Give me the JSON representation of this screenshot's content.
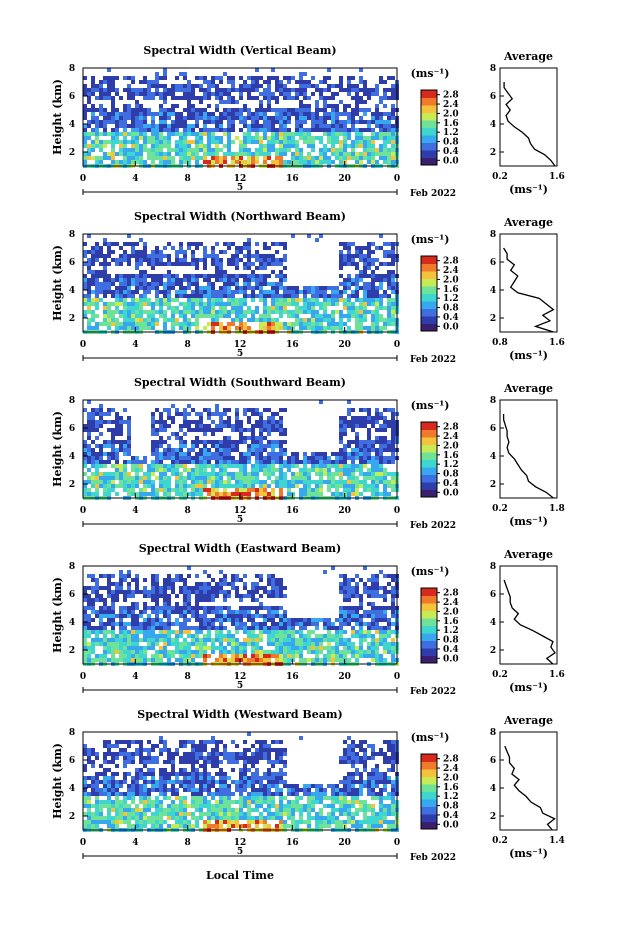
{
  "chart_data": [
    {
      "type": "heatmap",
      "title": "Spectral Width (Vertical Beam)",
      "ylabel": "Height (km)",
      "ylim": [
        1,
        8
      ],
      "y_ticks": [
        "2",
        "4",
        "6",
        "8"
      ],
      "x_ticks": [
        "0",
        "4",
        "8",
        "12",
        "16",
        "20",
        "0"
      ],
      "day_label": "5",
      "date_label": "Feb 2022",
      "colorbar": {
        "unit": "(ms⁻¹)",
        "ticks": [
          "0.0",
          "0.4",
          "0.8",
          "1.2",
          "1.6",
          "2.0",
          "2.4",
          "2.8"
        ]
      },
      "gaps": [],
      "avg": {
        "title": "Average",
        "x_ticks": [
          "0.2",
          "1.6"
        ],
        "xlim": [
          0.2,
          1.6
        ],
        "y_ticks": [
          "2",
          "4",
          "6",
          "8"
        ],
        "xlabel": "(ms⁻¹)",
        "heights": [
          1.0,
          1.4,
          1.8,
          2.2,
          2.6,
          3.0,
          3.4,
          3.8,
          4.2,
          4.6,
          5.0,
          5.4,
          5.8,
          6.2,
          6.6,
          7.0
        ],
        "values": [
          1.55,
          1.45,
          1.3,
          1.05,
          0.95,
          0.9,
          0.75,
          0.55,
          0.4,
          0.35,
          0.45,
          0.35,
          0.5,
          0.4,
          0.3,
          0.3
        ]
      }
    },
    {
      "type": "heatmap",
      "title": "Spectral Width (Northward Beam)",
      "ylabel": "Height (km)",
      "ylim": [
        1,
        8
      ],
      "y_ticks": [
        "2",
        "4",
        "6",
        "8"
      ],
      "x_ticks": [
        "0",
        "4",
        "8",
        "12",
        "16",
        "20",
        "0"
      ],
      "day_label": "5",
      "date_label": "Feb 2022",
      "colorbar": {
        "unit": "(ms⁻¹)",
        "ticks": [
          "0.0",
          "0.4",
          "0.8",
          "1.2",
          "1.6",
          "2.0",
          "2.4",
          "2.8"
        ]
      },
      "gaps": [
        [
          15.5,
          19.5,
          4.4
        ]
      ],
      "avg": {
        "title": "Average",
        "x_ticks": [
          "0.8",
          "1.6"
        ],
        "xlim": [
          0.8,
          1.6
        ],
        "y_ticks": [
          "2",
          "4",
          "6",
          "8"
        ],
        "xlabel": "(ms⁻¹)",
        "heights": [
          1.0,
          1.4,
          1.8,
          2.2,
          2.6,
          3.0,
          3.4,
          3.8,
          4.2,
          4.6,
          5.0,
          5.4,
          5.8,
          6.2,
          6.6,
          7.0
        ],
        "values": [
          1.55,
          1.3,
          1.5,
          1.4,
          1.55,
          1.45,
          1.35,
          1.05,
          0.95,
          1.0,
          1.05,
          0.95,
          1.0,
          0.9,
          0.9,
          0.85
        ]
      }
    },
    {
      "type": "heatmap",
      "title": "Spectral Width (Southward Beam)",
      "ylabel": "Height (km)",
      "ylim": [
        1,
        8
      ],
      "y_ticks": [
        "2",
        "4",
        "6",
        "8"
      ],
      "x_ticks": [
        "0",
        "4",
        "8",
        "12",
        "16",
        "20",
        "0"
      ],
      "day_label": "5",
      "date_label": "Feb 2022",
      "colorbar": {
        "unit": "(ms⁻¹)",
        "ticks": [
          "0.0",
          "0.4",
          "0.8",
          "1.2",
          "1.6",
          "2.0",
          "2.4",
          "2.8"
        ]
      },
      "gaps": [
        [
          3.5,
          5.0,
          4.0
        ],
        [
          15.5,
          19.5,
          4.2
        ]
      ],
      "avg": {
        "title": "Average",
        "x_ticks": [
          "0.2",
          "1.8"
        ],
        "xlim": [
          0.2,
          1.8
        ],
        "y_ticks": [
          "2",
          "4",
          "6",
          "8"
        ],
        "xlabel": "(ms⁻¹)",
        "heights": [
          1.0,
          1.4,
          1.8,
          2.2,
          2.6,
          3.0,
          3.4,
          3.8,
          4.2,
          4.6,
          5.0,
          5.4,
          5.8,
          6.2,
          6.6,
          7.0
        ],
        "values": [
          1.7,
          1.5,
          1.2,
          1.0,
          0.95,
          0.8,
          0.7,
          0.6,
          0.45,
          0.4,
          0.45,
          0.4,
          0.4,
          0.35,
          0.3,
          0.3
        ]
      }
    },
    {
      "type": "heatmap",
      "title": "Spectral Width (Eastward Beam)",
      "ylabel": "Height (km)",
      "ylim": [
        1,
        8
      ],
      "y_ticks": [
        "2",
        "4",
        "6",
        "8"
      ],
      "x_ticks": [
        "0",
        "4",
        "8",
        "12",
        "16",
        "20",
        "0"
      ],
      "day_label": "5",
      "date_label": "Feb 2022",
      "colorbar": {
        "unit": "(ms⁻¹)",
        "ticks": [
          "0.0",
          "0.4",
          "0.8",
          "1.2",
          "1.6",
          "2.0",
          "2.4",
          "2.8"
        ]
      },
      "gaps": [
        [
          15.5,
          19.5,
          4.4
        ]
      ],
      "avg": {
        "title": "Average",
        "x_ticks": [
          "0.2",
          "1.6"
        ],
        "xlim": [
          0.2,
          1.6
        ],
        "y_ticks": [
          "2",
          "4",
          "6",
          "8"
        ],
        "xlabel": "(ms⁻¹)",
        "heights": [
          1.0,
          1.4,
          1.8,
          2.2,
          2.6,
          3.0,
          3.4,
          3.8,
          4.2,
          4.6,
          5.0,
          5.4,
          5.8,
          6.2,
          6.6,
          7.0
        ],
        "values": [
          1.5,
          1.35,
          1.55,
          1.45,
          1.5,
          1.25,
          1.0,
          0.7,
          0.55,
          0.65,
          0.5,
          0.45,
          0.45,
          0.4,
          0.35,
          0.3
        ]
      }
    },
    {
      "type": "heatmap",
      "title": "Spectral Width (Westward Beam)",
      "ylabel": "Height (km)",
      "ylim": [
        1,
        8
      ],
      "y_ticks": [
        "2",
        "4",
        "6",
        "8"
      ],
      "x_ticks": [
        "0",
        "4",
        "8",
        "12",
        "16",
        "20",
        "0"
      ],
      "day_label": "5",
      "date_label": "Feb 2022",
      "colorbar": {
        "unit": "(ms⁻¹)",
        "ticks": [
          "0.0",
          "0.4",
          "0.8",
          "1.2",
          "1.6",
          "2.0",
          "2.4",
          "2.8"
        ]
      },
      "gaps": [
        [
          15.5,
          19.5,
          4.2
        ]
      ],
      "avg": {
        "title": "Average",
        "x_ticks": [
          "0.2",
          "1.4"
        ],
        "xlim": [
          0.2,
          1.4
        ],
        "y_ticks": [
          "2",
          "4",
          "6",
          "8"
        ],
        "xlabel": "(ms⁻¹)",
        "heights": [
          1.0,
          1.4,
          1.8,
          2.2,
          2.6,
          3.0,
          3.4,
          3.8,
          4.2,
          4.6,
          5.0,
          5.4,
          5.8,
          6.2,
          6.6,
          7.0
        ],
        "values": [
          1.3,
          1.2,
          1.35,
          1.1,
          1.05,
          0.85,
          0.75,
          0.6,
          0.5,
          0.6,
          0.45,
          0.5,
          0.4,
          0.4,
          0.35,
          0.3
        ]
      }
    }
  ],
  "xlabel": "Local Time",
  "colorbar_colors": [
    "#3a1f6e",
    "#2e3da9",
    "#3e6ee0",
    "#37a8f0",
    "#3fd6d0",
    "#6fe29a",
    "#c7ea56",
    "#f5c23c",
    "#f07a2c",
    "#d62a1e"
  ]
}
